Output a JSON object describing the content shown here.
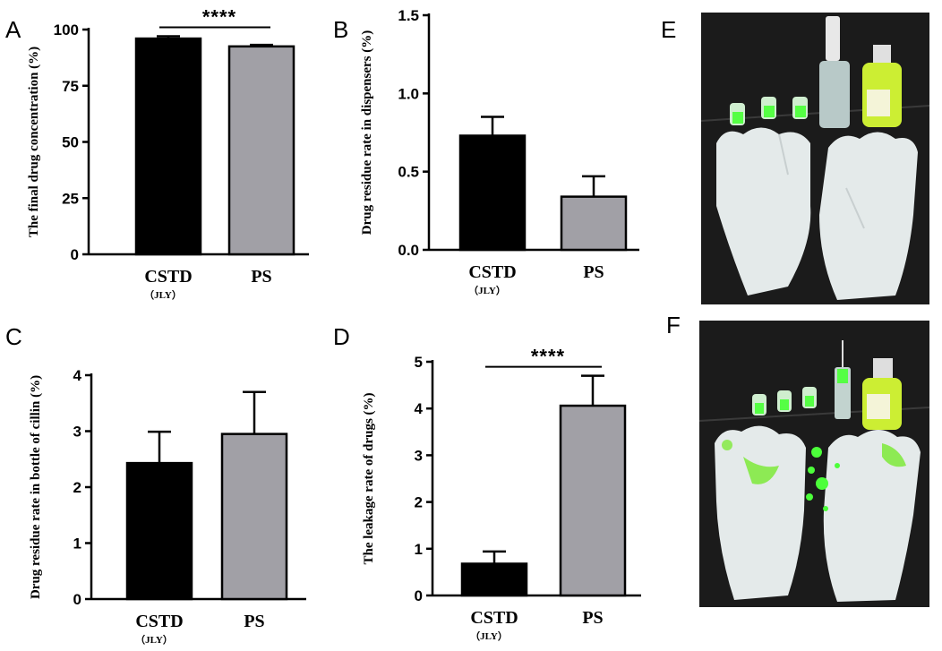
{
  "panels": {
    "A": "A",
    "B": "B",
    "C": "C",
    "D": "D",
    "E": "E",
    "F": "F"
  },
  "colors": {
    "cstd_bar": "#000000",
    "ps_bar": "#a1a0a6",
    "glove": "#e6ecec",
    "fluorescent": "#4cff3a",
    "photo_background": "#1b1b1b"
  },
  "icons": {
    "photo_E": "glove-photo-icon",
    "photo_F": "glove-photo-icon"
  },
  "chart_data": [
    {
      "id": "A",
      "type": "bar",
      "categories": [
        "CSTD",
        "PS"
      ],
      "category_sublabels": [
        "（JLY）",
        ""
      ],
      "values": [
        96,
        92.5
      ],
      "errors": [
        1,
        0.7
      ],
      "ylabel": "The final drug concentration (%)",
      "ylim": [
        0,
        100
      ],
      "yticks": [
        0,
        25,
        50,
        75,
        100
      ],
      "significance": "****"
    },
    {
      "id": "B",
      "type": "bar",
      "categories": [
        "CSTD",
        "PS"
      ],
      "category_sublabels": [
        "（JLY）",
        ""
      ],
      "values": [
        0.73,
        0.34
      ],
      "errors": [
        0.12,
        0.13
      ],
      "ylabel": "Drug residue rate in dispensers (%)",
      "ylim": [
        0,
        1.5
      ],
      "yticks": [
        "0.0",
        "0.5",
        "1.0",
        "1.5"
      ],
      "significance": ""
    },
    {
      "id": "C",
      "type": "bar",
      "categories": [
        "CSTD",
        "PS"
      ],
      "category_sublabels": [
        "（JLY）",
        ""
      ],
      "values": [
        2.43,
        2.95
      ],
      "errors": [
        0.56,
        0.75
      ],
      "ylabel": "Drug residue rate in bottle of cillin (%)",
      "ylim": [
        0,
        4
      ],
      "yticks": [
        0,
        1,
        2,
        3,
        4
      ],
      "significance": ""
    },
    {
      "id": "D",
      "type": "bar",
      "categories": [
        "CSTD",
        "PS"
      ],
      "category_sublabels": [
        "（JLY）",
        ""
      ],
      "values": [
        0.68,
        4.06
      ],
      "errors": [
        0.26,
        0.64
      ],
      "ylabel": "The leakage rate of drugs (%)",
      "ylim": [
        0,
        5
      ],
      "yticks": [
        0,
        1,
        2,
        3,
        4,
        5
      ],
      "significance": "****"
    }
  ]
}
